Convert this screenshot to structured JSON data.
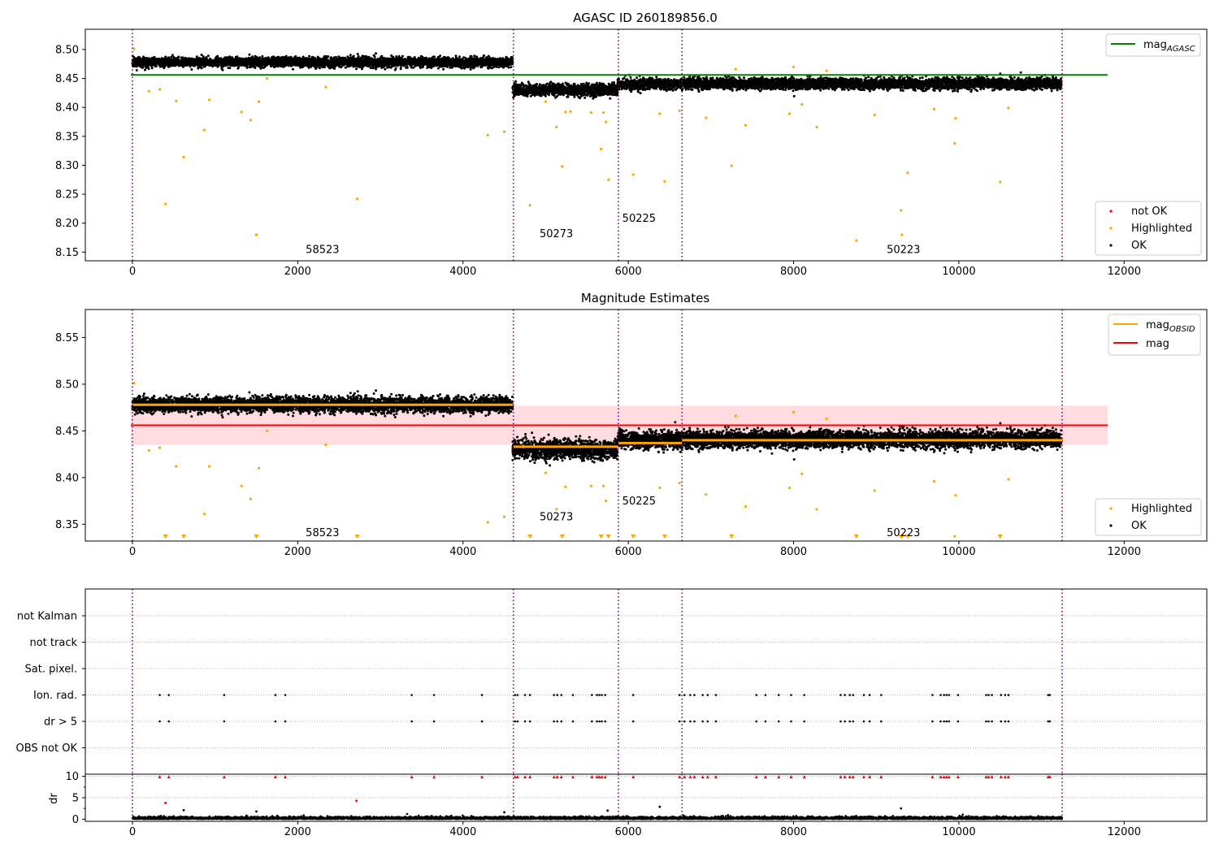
{
  "chart_data": [
    {
      "type": "scatter",
      "title": "AGASC ID 260189856.0",
      "xlabel": "",
      "ylabel": "",
      "xlim": [
        -570,
        13000
      ],
      "ylim": [
        8.135,
        8.535
      ],
      "x_ticks": [
        0,
        2000,
        4000,
        6000,
        8000,
        10000,
        12000
      ],
      "y_ticks": [
        8.15,
        8.2,
        8.25,
        8.3,
        8.35,
        8.4,
        8.45,
        8.5
      ],
      "legend_upper": {
        "position": "top-right",
        "entries": [
          {
            "label": "mag",
            "subscript": "AGASC",
            "color": "#008000",
            "style": "line"
          }
        ]
      },
      "legend_lower": {
        "position": "bottom-right",
        "entries": [
          {
            "label": "not OK",
            "color": "#ff0000",
            "style": "marker"
          },
          {
            "label": "Highlighted",
            "color": "#ffa500",
            "style": "marker"
          },
          {
            "label": "OK",
            "color": "#000000",
            "style": "marker"
          }
        ]
      },
      "series": [
        {
          "name": "mag_AGASC",
          "type": "hline",
          "y": 8.456,
          "x": [
            -20,
            11800
          ],
          "color": "#008000"
        },
        {
          "name": "OK",
          "type": "band",
          "color": "#000000",
          "segments": [
            {
              "x": [
                0,
                4600
              ],
              "center": 8.478,
              "spread": 0.008
            },
            {
              "x": [
                4600,
                5870
              ],
              "center": 8.43,
              "spread": 0.01
            },
            {
              "x": [
                5870,
                6650
              ],
              "center": 8.44,
              "spread": 0.009
            },
            {
              "x": [
                6650,
                11240
              ],
              "center": 8.441,
              "spread": 0.009
            }
          ]
        },
        {
          "name": "Highlighted",
          "color": "#ffa500",
          "points": [
            [
              20,
              8.501
            ],
            [
              200,
              8.428
            ],
            [
              330,
              8.431
            ],
            [
              400,
              8.233
            ],
            [
              530,
              8.411
            ],
            [
              620,
              8.314
            ],
            [
              870,
              8.361
            ],
            [
              930,
              8.413
            ],
            [
              1320,
              8.392
            ],
            [
              1430,
              8.378
            ],
            [
              1500,
              8.18
            ],
            [
              1530,
              8.41
            ],
            [
              1630,
              8.45
            ],
            [
              2340,
              8.435
            ],
            [
              2720,
              8.242
            ],
            [
              4300,
              8.352
            ],
            [
              4500,
              8.358
            ],
            [
              4810,
              8.231
            ],
            [
              5000,
              8.41
            ],
            [
              5130,
              8.366
            ],
            [
              5200,
              8.298
            ],
            [
              5240,
              8.392
            ],
            [
              5300,
              8.393
            ],
            [
              5550,
              8.391
            ],
            [
              5670,
              8.328
            ],
            [
              5700,
              8.391
            ],
            [
              5730,
              8.375
            ],
            [
              5760,
              8.275
            ],
            [
              6060,
              8.284
            ],
            [
              6380,
              8.389
            ],
            [
              6440,
              8.272
            ],
            [
              6620,
              8.394
            ],
            [
              6940,
              8.382
            ],
            [
              7250,
              8.299
            ],
            [
              7300,
              8.466
            ],
            [
              7420,
              8.369
            ],
            [
              7950,
              8.389
            ],
            [
              8000,
              8.47
            ],
            [
              8100,
              8.405
            ],
            [
              8280,
              8.366
            ],
            [
              8400,
              8.463
            ],
            [
              8760,
              8.17
            ],
            [
              8980,
              8.387
            ],
            [
              9300,
              8.222
            ],
            [
              9310,
              8.18
            ],
            [
              9380,
              8.287
            ],
            [
              9700,
              8.397
            ],
            [
              9950,
              8.338
            ],
            [
              9960,
              8.381
            ],
            [
              10500,
              8.271
            ],
            [
              10600,
              8.399
            ]
          ]
        },
        {
          "name": "not OK",
          "color": "#ff0000",
          "points": []
        }
      ],
      "vlines": [
        0,
        4610,
        5880,
        6650,
        11250
      ],
      "annotations": [
        {
          "text": "58523",
          "x": 2300,
          "y": 8.155
        },
        {
          "text": "50273",
          "x": 5130,
          "y": 8.182
        },
        {
          "text": "50225",
          "x": 6130,
          "y": 8.209
        },
        {
          "text": "50223",
          "x": 9330,
          "y": 8.155
        }
      ]
    },
    {
      "type": "scatter",
      "title": "Magnitude Estimates",
      "xlabel": "",
      "ylabel": "",
      "xlim": [
        -570,
        13000
      ],
      "ylim": [
        8.332,
        8.58
      ],
      "x_ticks": [
        0,
        2000,
        4000,
        6000,
        8000,
        10000,
        12000
      ],
      "y_ticks": [
        8.35,
        8.4,
        8.45,
        8.5,
        8.55
      ],
      "legend_upper": {
        "position": "top-right",
        "entries": [
          {
            "label": "mag",
            "subscript": "OBSID",
            "color": "#ffa500",
            "style": "line"
          },
          {
            "label": "mag",
            "subscript": "",
            "color": "#ff0000",
            "style": "line"
          }
        ]
      },
      "legend_lower": {
        "position": "bottom-right",
        "entries": [
          {
            "label": "Highlighted",
            "color": "#ffa500",
            "style": "marker"
          },
          {
            "label": "OK",
            "color": "#000000",
            "style": "marker"
          }
        ]
      },
      "series": [
        {
          "name": "mag",
          "type": "hline",
          "y": 8.456,
          "x": [
            -20,
            11800
          ],
          "color": "#ff0000",
          "band": [
            8.435,
            8.477
          ]
        },
        {
          "name": "mag_OBSID",
          "type": "steps",
          "color": "#ffa500",
          "steps": [
            {
              "x": [
                0,
                4610
              ],
              "y": 8.478
            },
            {
              "x": [
                4610,
                5880
              ],
              "y": 8.433
            },
            {
              "x": [
                5880,
                6650
              ],
              "y": 8.437
            },
            {
              "x": [
                6650,
                11250
              ],
              "y": 8.44
            }
          ]
        },
        {
          "name": "OK",
          "type": "band",
          "color": "#000000",
          "segments": [
            {
              "x": [
                0,
                4600
              ],
              "center": 8.478,
              "spread": 0.008
            },
            {
              "x": [
                4600,
                5870
              ],
              "center": 8.43,
              "spread": 0.01
            },
            {
              "x": [
                5870,
                6650
              ],
              "center": 8.44,
              "spread": 0.009
            },
            {
              "x": [
                6650,
                11240
              ],
              "center": 8.441,
              "spread": 0.009
            }
          ]
        },
        {
          "name": "Highlighted",
          "color": "#ffa500",
          "points": [
            [
              20,
              8.501
            ],
            [
              200,
              8.429
            ],
            [
              330,
              8.432
            ],
            [
              530,
              8.412
            ],
            [
              870,
              8.361
            ],
            [
              930,
              8.412
            ],
            [
              1320,
              8.391
            ],
            [
              1430,
              8.377
            ],
            [
              1530,
              8.41
            ],
            [
              1630,
              8.45
            ],
            [
              2340,
              8.435
            ],
            [
              4300,
              8.352
            ],
            [
              4500,
              8.358
            ],
            [
              5000,
              8.405
            ],
            [
              5130,
              8.366
            ],
            [
              5240,
              8.39
            ],
            [
              5550,
              8.391
            ],
            [
              5700,
              8.391
            ],
            [
              5730,
              8.375
            ],
            [
              6380,
              8.389
            ],
            [
              6620,
              8.394
            ],
            [
              6940,
              8.382
            ],
            [
              7300,
              8.466
            ],
            [
              7420,
              8.369
            ],
            [
              7950,
              8.389
            ],
            [
              8000,
              8.47
            ],
            [
              8100,
              8.404
            ],
            [
              8280,
              8.366
            ],
            [
              8400,
              8.463
            ],
            [
              8980,
              8.386
            ],
            [
              9700,
              8.396
            ],
            [
              9950,
              8.337
            ],
            [
              9960,
              8.381
            ],
            [
              10600,
              8.398
            ]
          ]
        },
        {
          "name": "Highlighted (off-scale)",
          "color": "#ffa500",
          "marker": "triangle-down",
          "x_values": [
            400,
            620,
            1500,
            2720,
            4810,
            5200,
            5670,
            5760,
            6060,
            6440,
            7250,
            8760,
            9300,
            9310,
            9380,
            10500
          ]
        }
      ],
      "vlines": [
        0,
        4610,
        5880,
        6650,
        11250
      ],
      "annotations": [
        {
          "text": "58523",
          "x": 2300,
          "y": 8.341
        },
        {
          "text": "50273",
          "x": 5130,
          "y": 8.358
        },
        {
          "text": "50225",
          "x": 6130,
          "y": 8.375
        },
        {
          "text": "50223",
          "x": 9330,
          "y": 8.341
        }
      ]
    },
    {
      "type": "scatter",
      "title": "",
      "xlabel": "",
      "ylabel": "",
      "xlim": [
        -570,
        13000
      ],
      "categories": [
        "not Kalman",
        "not track",
        "Sat. pixel.",
        "Ion. rad.",
        "dr > 5",
        "OBS not OK"
      ],
      "flag_events_x": [
        330,
        440,
        1110,
        1730,
        1850,
        3380,
        3650,
        4230,
        4630,
        4660,
        4750,
        4810,
        5100,
        5140,
        5190,
        5330,
        5560,
        5620,
        5650,
        5680,
        5720,
        6060,
        6620,
        6680,
        6750,
        6800,
        6900,
        6960,
        7060,
        7550,
        7660,
        7820,
        7970,
        8130,
        8570,
        8620,
        8680,
        8720,
        8850,
        8920,
        9060,
        9680,
        9780,
        9820,
        9850,
        9880,
        9990,
        10330,
        10360,
        10400,
        10510,
        10560,
        10600,
        11080,
        11100
      ],
      "flag_categories": [
        "Ion. rad.",
        "dr > 5"
      ],
      "marker_color": "#000000"
    },
    {
      "type": "scatter",
      "title": "",
      "xlabel": "",
      "ylabel": "dr",
      "xlim": [
        -570,
        13000
      ],
      "ylim": [
        -0.5,
        10.5
      ],
      "y_ticks": [
        0,
        5,
        10
      ],
      "y_minor_ticks": [
        2.5,
        7.5
      ],
      "x_ticks": [
        0,
        2000,
        4000,
        6000,
        8000,
        10000,
        12000
      ],
      "series": [
        {
          "name": "OK",
          "type": "band",
          "color": "#000000",
          "segments": [
            {
              "x": [
                0,
                11250
              ],
              "center": 0.3,
              "spread": 0.3
            }
          ]
        },
        {
          "name": "clipped",
          "color": "#ff0000",
          "marker": "triangle-up",
          "y": 9.9,
          "x_values": [
            330,
            440,
            1110,
            1730,
            1850,
            3380,
            3650,
            4230,
            4630,
            4660,
            4750,
            4810,
            5100,
            5140,
            5190,
            5330,
            5560,
            5620,
            5650,
            5680,
            5720,
            6060,
            6620,
            6680,
            6750,
            6800,
            6900,
            6960,
            7060,
            7550,
            7660,
            7820,
            7970,
            8130,
            8570,
            8620,
            8680,
            8720,
            8850,
            8920,
            9060,
            9680,
            9780,
            9820,
            9850,
            9880,
            9990,
            10330,
            10360,
            10400,
            10510,
            10560,
            10600,
            11080,
            11100
          ]
        },
        {
          "name": "notable",
          "color": "#ff0000",
          "points": [
            [
              400,
              3.8
            ],
            [
              2710,
              4.3
            ]
          ]
        },
        {
          "name": "notable-black",
          "color": "#000000",
          "points": [
            [
              620,
              2.1
            ],
            [
              1500,
              1.8
            ],
            [
              5750,
              2.0
            ],
            [
              6380,
              2.9
            ],
            [
              9300,
              2.5
            ],
            [
              4500,
              1.6
            ]
          ]
        }
      ],
      "vlines": [
        0,
        4610,
        5880,
        6650,
        11250
      ]
    }
  ]
}
